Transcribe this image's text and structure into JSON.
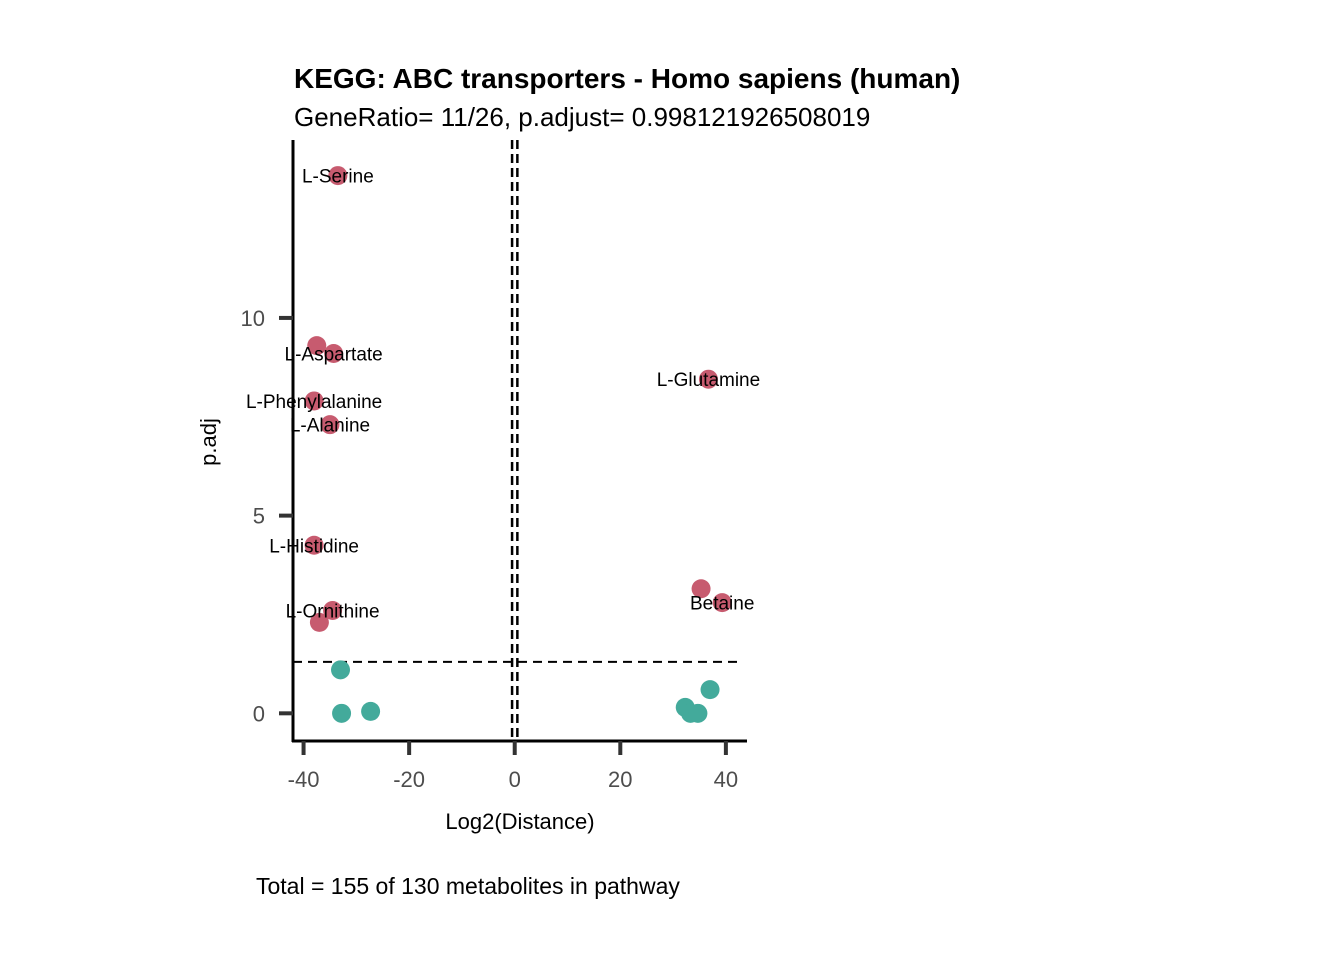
{
  "title": "KEGG: ABC transporters - Homo sapiens (human)",
  "subtitle": "GeneRatio= 11/26, p.adjust= 0.998121926508019",
  "caption": "Total = 155 of 130 metabolites in pathway",
  "chart_data": {
    "type": "scatter",
    "xlabel": "Log2(Distance)",
    "ylabel": "p.adj",
    "xlim": [
      -42,
      44
    ],
    "ylim": [
      -0.7,
      14.5
    ],
    "x_ticks": [
      -40,
      -20,
      0,
      20,
      40
    ],
    "x_tick_labels": [
      "-40",
      "-20",
      "0",
      "20",
      "40"
    ],
    "y_ticks": [
      0,
      5,
      10
    ],
    "y_tick_labels": [
      "0",
      "5",
      "10"
    ],
    "vlines": [
      -0.5,
      0.5
    ],
    "hline": 1.3,
    "grid": false,
    "colors": {
      "significant": "#c75b6f",
      "not_significant": "#43aa9b",
      "reference_line": "#000000"
    },
    "points": [
      {
        "x": -33.5,
        "y": 13.6,
        "group": "significant",
        "label": "L-Serine"
      },
      {
        "x": -37.5,
        "y": 9.3,
        "group": "significant",
        "label": ""
      },
      {
        "x": -34.3,
        "y": 9.1,
        "group": "significant",
        "label": "L-Aspartate"
      },
      {
        "x": -38.0,
        "y": 7.9,
        "group": "significant",
        "label": "L-Phenylalanine"
      },
      {
        "x": -35.0,
        "y": 7.3,
        "group": "significant",
        "label": "L-Alanine"
      },
      {
        "x": -38.0,
        "y": 4.25,
        "group": "significant",
        "label": "L-Histidine"
      },
      {
        "x": -34.5,
        "y": 2.6,
        "group": "significant",
        "label": "L-Ornithine"
      },
      {
        "x": -37.0,
        "y": 2.3,
        "group": "significant",
        "label": ""
      },
      {
        "x": 36.7,
        "y": 8.45,
        "group": "significant",
        "label": "L-Glutamine"
      },
      {
        "x": 35.3,
        "y": 3.15,
        "group": "significant",
        "label": ""
      },
      {
        "x": 39.3,
        "y": 2.8,
        "group": "significant",
        "label": "Betaine"
      },
      {
        "x": -33.0,
        "y": 1.1,
        "group": "not_significant",
        "label": ""
      },
      {
        "x": -32.8,
        "y": 0.0,
        "group": "not_significant",
        "label": ""
      },
      {
        "x": -27.3,
        "y": 0.05,
        "group": "not_significant",
        "label": ""
      },
      {
        "x": 32.3,
        "y": 0.15,
        "group": "not_significant",
        "label": ""
      },
      {
        "x": 33.3,
        "y": 0.0,
        "group": "not_significant",
        "label": ""
      },
      {
        "x": 34.7,
        "y": 0.0,
        "group": "not_significant",
        "label": ""
      },
      {
        "x": 37.0,
        "y": 0.6,
        "group": "not_significant",
        "label": ""
      }
    ]
  }
}
